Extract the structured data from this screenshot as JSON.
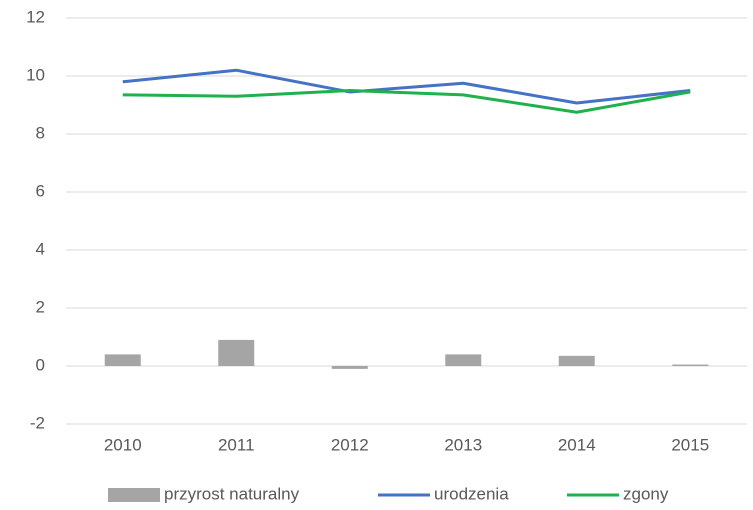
{
  "chart_data": {
    "type": "combo",
    "categories": [
      "2010",
      "2011",
      "2012",
      "2013",
      "2014",
      "2015"
    ],
    "series": [
      {
        "name": "przyrost naturalny",
        "type": "bar",
        "color": "#a5a5a5",
        "values": [
          0.4,
          0.9,
          -0.1,
          0.4,
          0.35,
          0.05
        ]
      },
      {
        "name": "urodzenia",
        "type": "line",
        "color": "#4472c4",
        "values": [
          9.8,
          10.2,
          9.45,
          9.75,
          9.07,
          9.5
        ]
      },
      {
        "name": "zgony",
        "type": "line",
        "color": "#1fb14c",
        "values": [
          9.35,
          9.3,
          9.5,
          9.35,
          8.75,
          9.45
        ]
      }
    ],
    "ylim": [
      -2,
      12
    ],
    "yticks": [
      -2,
      0,
      2,
      4,
      6,
      8,
      10,
      12
    ],
    "grid": true,
    "legend": "bottom"
  }
}
